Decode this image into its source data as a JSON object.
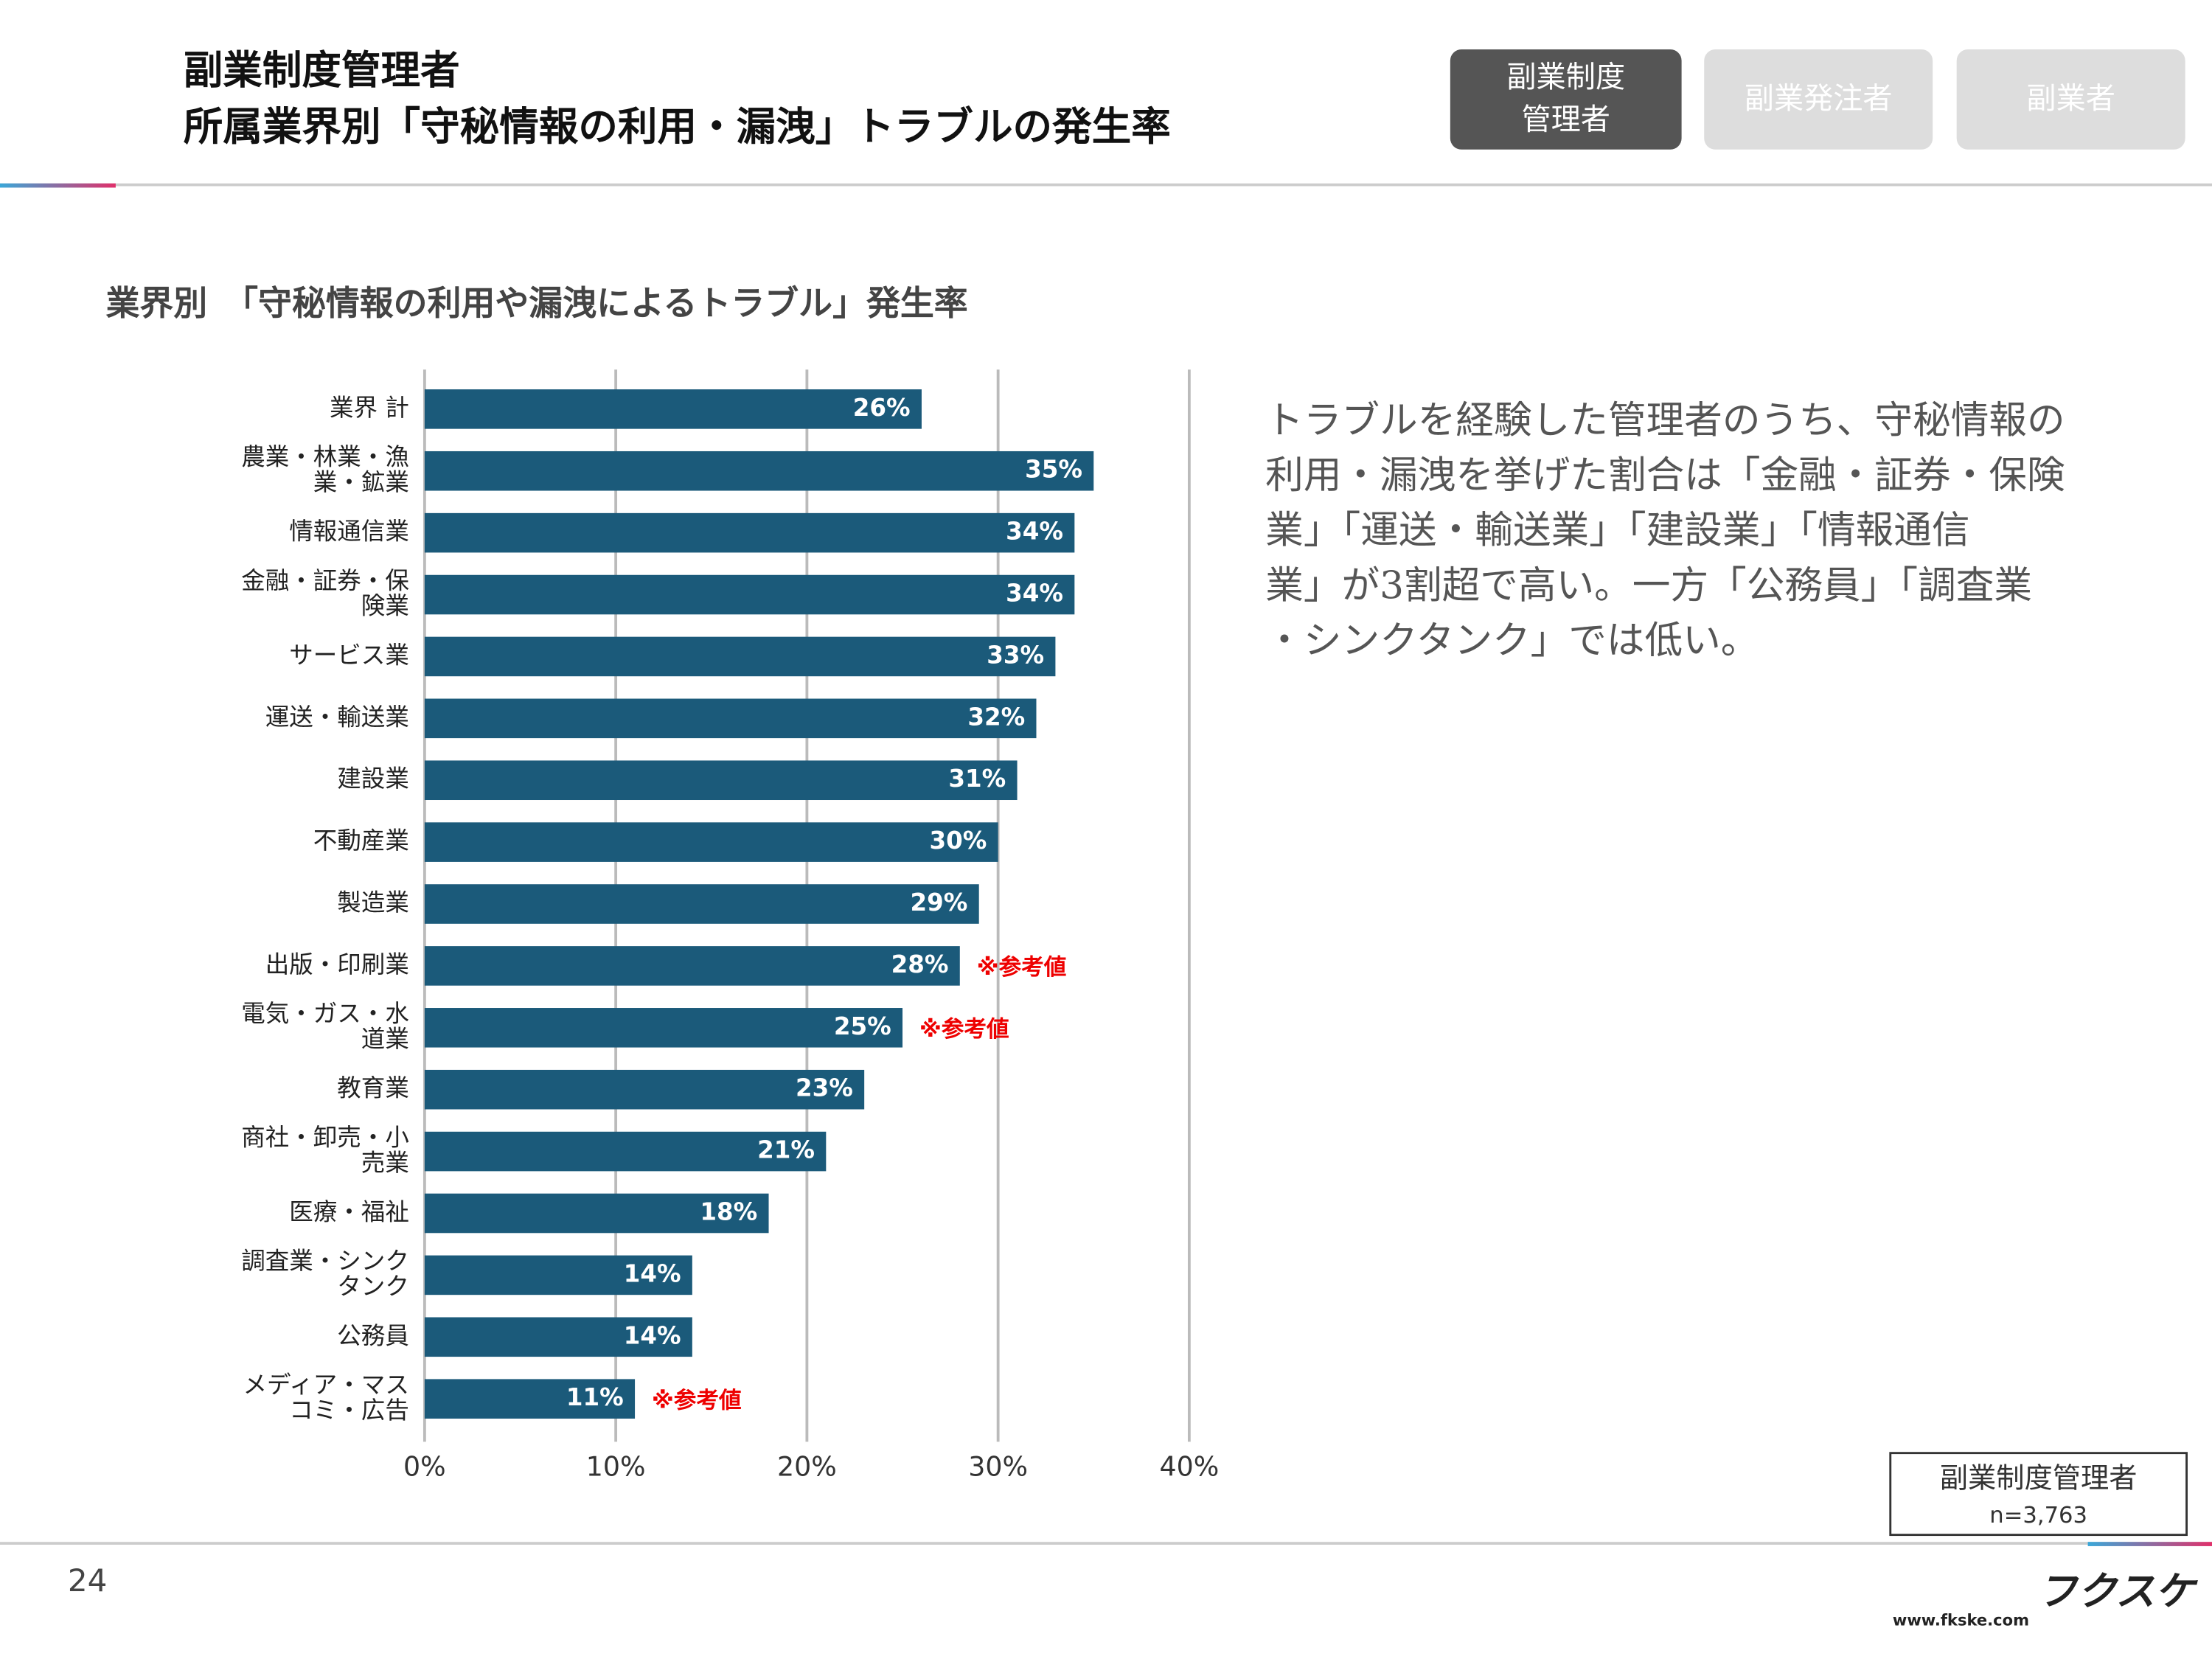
{
  "header": {
    "title_lines": [
      "副業制度管理者",
      "所属業界別「守秘情報の利用・漏洩」トラブルの発生率"
    ],
    "tabs": [
      "副業制度\n管理者",
      "副業発注者",
      "副業者"
    ]
  },
  "chart_data": {
    "type": "bar",
    "orientation": "horizontal",
    "title": "業界別　「守秘情報の利用や漏洩によるトラブル」発生率",
    "categories": [
      "業界 計",
      "農業・林業・漁\n業・鉱業",
      "情報通信業",
      "金融・証券・保\n険業",
      "サービス業",
      "運送・輸送業",
      "建設業",
      "不動産業",
      "製造業",
      "出版・印刷業",
      "電気・ガス・水\n道業",
      "教育業",
      "商社・卸売・小\n売業",
      "医療・福祉",
      "調査業・シンク\nタンク",
      "公務員",
      "メディア・マス\nコミ・広告"
    ],
    "values": [
      26,
      35,
      34,
      34,
      33,
      32,
      31,
      30,
      29,
      28,
      25,
      23,
      21,
      18,
      14,
      14,
      11
    ],
    "value_labels": [
      "26%",
      "35%",
      "34%",
      "34%",
      "33%",
      "32%",
      "31%",
      "30%",
      "29%",
      "28%",
      "25%",
      "23%",
      "21%",
      "18%",
      "14%",
      "14%",
      "11%"
    ],
    "value_notes": [
      null,
      null,
      null,
      null,
      null,
      null,
      null,
      null,
      null,
      "※参考値",
      "※参考値",
      null,
      null,
      null,
      null,
      null,
      "※参考値"
    ],
    "color": "#1b5a7a",
    "xlim": [
      0,
      40
    ],
    "xticks": [
      {
        "value": 0,
        "label": "0%"
      },
      {
        "value": 10,
        "label": "10%"
      },
      {
        "value": 20,
        "label": "20%"
      },
      {
        "value": 30,
        "label": "30%"
      },
      {
        "value": 40,
        "label": "40%"
      }
    ],
    "grid": true
  },
  "description_lines": [
    "トラブルを経験した管理者のうち、守秘情報の",
    "利用・漏洩を挙げた割合は「金融・証券・保険",
    "業」「運送・輸送業」「建設業」「情報通信",
    "業」が3割超で高い。一方「公務員」「調査業",
    "・シンクタンク」では低い。"
  ],
  "sample_box": {
    "label": "副業制度管理者",
    "n": "n=3,763"
  },
  "footer": {
    "page": "24",
    "logo": "フクスケ",
    "url": "www.fkske.com"
  }
}
